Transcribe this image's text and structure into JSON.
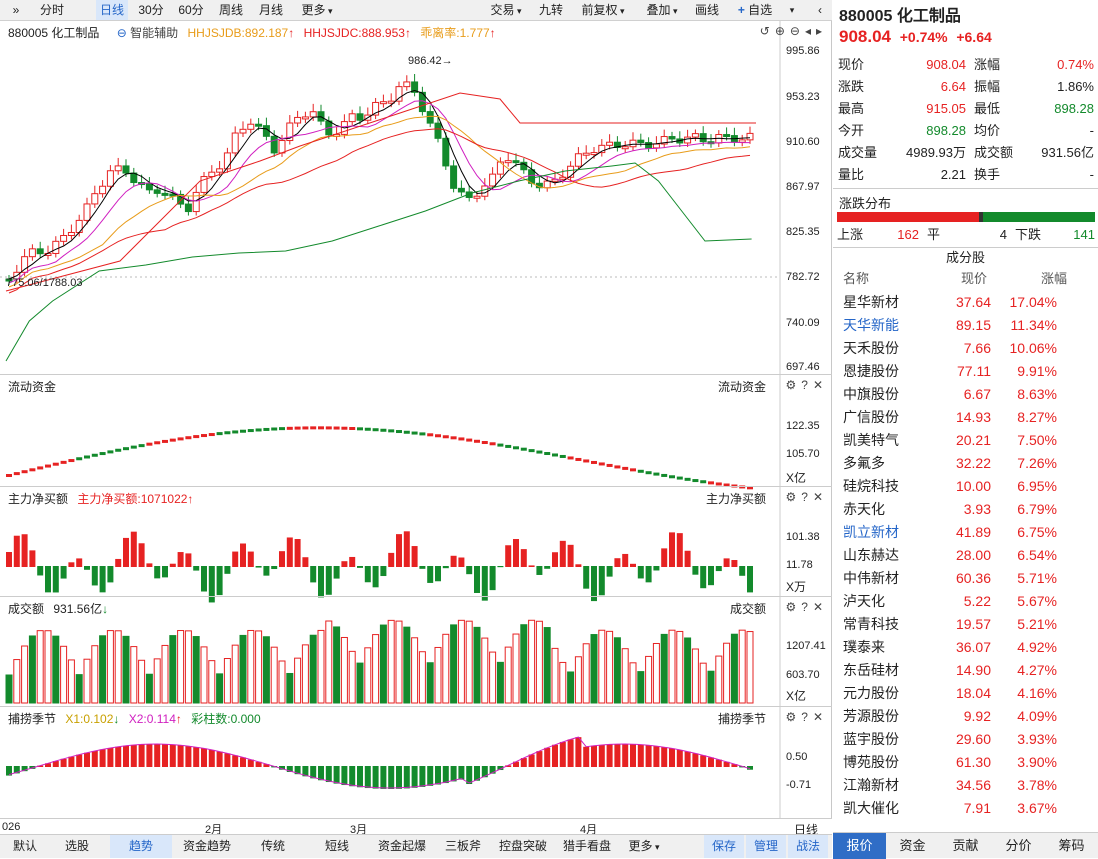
{
  "toolbar": {
    "expand": "»",
    "periods": [
      "分时",
      "日线",
      "30分",
      "60分",
      "周线",
      "月线",
      "更多"
    ],
    "active_period": "日线",
    "right": [
      "交易",
      "九转",
      "前复权",
      "叠加",
      "画线",
      "自选"
    ]
  },
  "main_chart": {
    "name": "880005 化工制品",
    "assist": "智能辅助",
    "hhjsjdb": "HHJSJDB:892.187",
    "hhjsjdc": "HHJSJDC:888.953",
    "deviation": "乖离率:1.777",
    "y_ticks": [
      "995.86",
      "953.23",
      "910.60",
      "867.97",
      "825.35",
      "782.72",
      "740.09",
      "697.46"
    ],
    "high_label": "986.42",
    "low_label": "775.06/1788.03"
  },
  "flow_panel": {
    "title": "流动资金",
    "right_title": "流动资金",
    "y_ticks": [
      "122.35",
      "105.70"
    ],
    "unit": "X亿"
  },
  "netbuy_panel": {
    "title": "主力净买额",
    "value": "主力净买额:1071022",
    "right_title": "主力净买额",
    "y_ticks": [
      "101.38",
      "11.78"
    ],
    "unit": "X万"
  },
  "amount_panel": {
    "title": "成交额",
    "value": "931.56亿",
    "right_title": "成交额",
    "y_ticks": [
      "1207.41",
      "603.70"
    ],
    "unit": "X亿"
  },
  "season_panel": {
    "title": "捕捞季节",
    "x1": "X1:0.102",
    "x2": "X2:0.114",
    "bars": "彩柱数:0.000",
    "right_title": "捕捞季节",
    "y_ticks": [
      "0.50",
      "-0.71"
    ]
  },
  "x_axis": {
    "labels": [
      "026",
      "2月",
      "3月",
      "4月"
    ],
    "right_label": "日线"
  },
  "bottom_tabs": [
    "默认",
    "选股",
    "趋势",
    "资金趋势",
    "传统",
    "短线",
    "资金起爆",
    "三板斧",
    "控盘突破",
    "猎手看盘",
    "更多"
  ],
  "bottom_active": "趋势",
  "bottom_right": [
    "保存",
    "管理",
    "战法"
  ],
  "quote": {
    "title": "880005 化工制品",
    "price": "908.04",
    "pct": "+0.74%",
    "chg": "+6.64",
    "rows": [
      [
        "现价",
        "908.04",
        "red",
        "涨幅",
        "0.74%",
        "red"
      ],
      [
        "涨跌",
        "6.64",
        "red",
        "振幅",
        "1.86%",
        ""
      ],
      [
        "最高",
        "915.05",
        "red",
        "最低",
        "898.28",
        "green"
      ],
      [
        "今开",
        "898.28",
        "green",
        "均价",
        "-",
        ""
      ],
      [
        "成交量",
        "4989.93万",
        "",
        "成交额",
        "931.56亿",
        ""
      ],
      [
        "量比",
        "2.21",
        "",
        "换手",
        "-",
        ""
      ]
    ]
  },
  "distribution": {
    "title": "涨跌分布",
    "up_label": "上涨",
    "up": "162",
    "flat_label": "平",
    "flat": "4",
    "down_label": "下跌",
    "down": "141"
  },
  "constituents": {
    "title": "成分股",
    "headers": [
      "名称",
      "现价",
      "涨幅"
    ],
    "rows": [
      [
        "星华新材",
        "37.64",
        "17.04%"
      ],
      [
        "天华新能",
        "89.15",
        "11.34%"
      ],
      [
        "天禾股份",
        "7.66",
        "10.06%"
      ],
      [
        "恩捷股份",
        "77.11",
        "9.91%"
      ],
      [
        "中旗股份",
        "6.67",
        "8.63%"
      ],
      [
        "广信股份",
        "14.93",
        "8.27%"
      ],
      [
        "凯美特气",
        "20.21",
        "7.50%"
      ],
      [
        "多氟多",
        "32.22",
        "7.26%"
      ],
      [
        "硅烷科技",
        "10.00",
        "6.95%"
      ],
      [
        "赤天化",
        "3.93",
        "6.79%"
      ],
      [
        "凯立新材",
        "41.89",
        "6.75%"
      ],
      [
        "山东赫达",
        "28.00",
        "6.54%"
      ],
      [
        "中伟新材",
        "60.36",
        "5.71%"
      ],
      [
        "泸天化",
        "5.22",
        "5.67%"
      ],
      [
        "常青科技",
        "19.57",
        "5.21%"
      ],
      [
        "璞泰来",
        "36.07",
        "4.92%"
      ],
      [
        "东岳硅材",
        "14.90",
        "4.27%"
      ],
      [
        "元力股份",
        "18.04",
        "4.16%"
      ],
      [
        "芳源股份",
        "9.92",
        "4.09%"
      ],
      [
        "蓝宇股份",
        "29.60",
        "3.93%"
      ],
      [
        "博苑股份",
        "61.30",
        "3.90%"
      ],
      [
        "江瀚新材",
        "34.56",
        "3.78%"
      ],
      [
        "凯大催化",
        "7.91",
        "3.67%"
      ]
    ],
    "blue_names": [
      "天华新能",
      "凯立新材"
    ]
  },
  "right_tabs": [
    "报价",
    "资金",
    "贡献",
    "分价",
    "筹码"
  ],
  "right_active": "报价",
  "colors": {
    "up": "#e62222",
    "down": "#138a2c",
    "accent": "#2566c8"
  }
}
